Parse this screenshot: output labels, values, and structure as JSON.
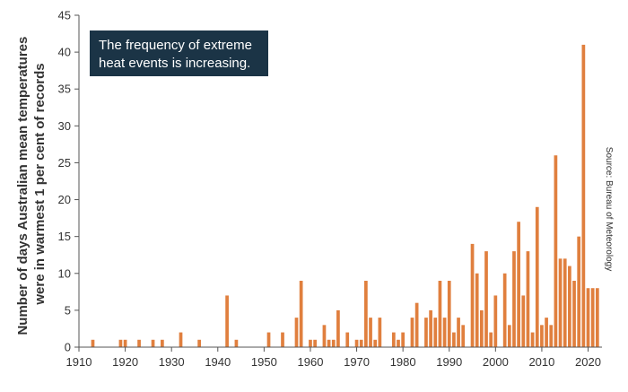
{
  "chart_data": {
    "type": "bar",
    "ylabel_lines": [
      "Number of days Australian mean temperatures",
      "were in warmest 1 per cent of records"
    ],
    "source": "Source: Bureau of Meteorology",
    "annotation_lines": [
      "The frequency of extreme",
      "heat events is increasing."
    ],
    "xlim": [
      1910,
      2023
    ],
    "ylim": [
      0,
      45
    ],
    "x_ticks": [
      1910,
      1920,
      1930,
      1940,
      1950,
      1960,
      1970,
      1980,
      1990,
      2000,
      2010,
      2020
    ],
    "y_ticks": [
      0,
      5,
      10,
      15,
      20,
      25,
      30,
      35,
      40,
      45
    ],
    "grid": false,
    "colors": {
      "bar": "#e07f3e",
      "axis": "#555555",
      "callout_bg": "#1b3446"
    },
    "x": [
      1913,
      1919,
      1920,
      1923,
      1926,
      1928,
      1932,
      1936,
      1942,
      1944,
      1951,
      1954,
      1957,
      1958,
      1960,
      1961,
      1963,
      1964,
      1965,
      1966,
      1968,
      1970,
      1971,
      1972,
      1973,
      1974,
      1975,
      1978,
      1979,
      1980,
      1982,
      1983,
      1985,
      1986,
      1987,
      1988,
      1989,
      1990,
      1991,
      1992,
      1993,
      1994,
      1995,
      1996,
      1997,
      1998,
      1999,
      2000,
      2001,
      2002,
      2003,
      2004,
      2005,
      2006,
      2007,
      2008,
      2009,
      2010,
      2011,
      2012,
      2013,
      2014,
      2015,
      2016,
      2017,
      2018,
      2019,
      2020,
      2021,
      2022
    ],
    "values": [
      1,
      1,
      1,
      1,
      1,
      1,
      2,
      1,
      7,
      1,
      2,
      2,
      4,
      9,
      1,
      1,
      3,
      1,
      1,
      5,
      2,
      1,
      1,
      9,
      4,
      1,
      4,
      2,
      1,
      2,
      4,
      6,
      4,
      5,
      4,
      9,
      4,
      9,
      2,
      4,
      3,
      0,
      14,
      10,
      5,
      13,
      2,
      7,
      0,
      10,
      3,
      13,
      17,
      7,
      13,
      2,
      19,
      3,
      4,
      3,
      26,
      12,
      12,
      11,
      9,
      15,
      41,
      8,
      8,
      8
    ]
  }
}
